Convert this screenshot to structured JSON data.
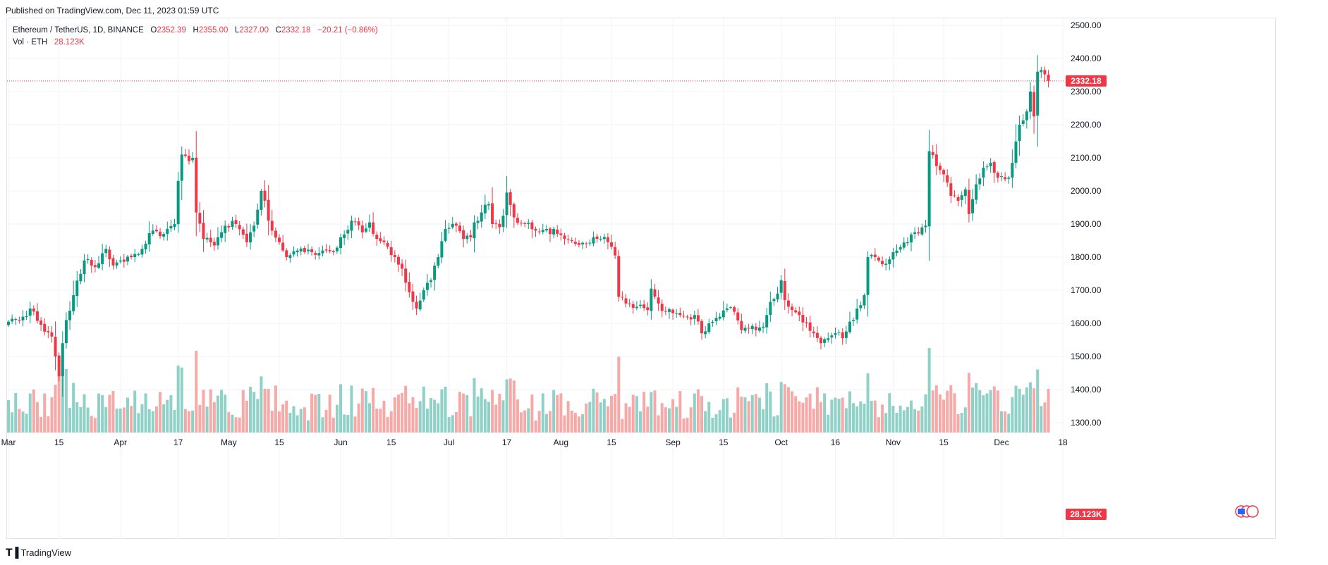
{
  "header": {
    "published": "Published on TradingView.com, Dec 11, 2023 01:59 UTC"
  },
  "legend": {
    "symbol": "Ethereum / TetherUS, 1D, BINANCE",
    "o_label": "O",
    "o_value": "2352.39",
    "h_label": "H",
    "h_value": "2355.00",
    "l_label": "L",
    "l_value": "2327.00",
    "c_label": "C",
    "c_value": "2332.18",
    "change": "−20.21 (−0.86%)",
    "vol_label": "Vol · ETH",
    "vol_value": "28.123K"
  },
  "footer": {
    "brand": "TradingView"
  },
  "colors": {
    "up": "#089981",
    "down": "#f23645",
    "up_vol": "#8fd0c7",
    "down_vol": "#f7a9a7",
    "grid": "#f0f3fa",
    "price_line": "#f23645"
  },
  "chart_data": {
    "type": "candlestick",
    "symbol": "ETHUSDT",
    "interval": "1D",
    "price_axis": {
      "min": 1300,
      "max": 2500,
      "ticks": [
        2500,
        2400,
        2300,
        2200,
        2100,
        2000,
        1900,
        1800,
        1700,
        1600,
        1500,
        1400,
        1300
      ]
    },
    "price_axis_labels": [
      "2500.00",
      "2400.00",
      "2300.00",
      "2200.00",
      "2100.00",
      "2000.00",
      "1900.00",
      "1800.00",
      "1700.00",
      "1600.00",
      "1500.00",
      "1400.00",
      "1300.00"
    ],
    "last_price": 2332.18,
    "last_price_label": "2332.18",
    "last_volume_label": "28.123K",
    "x_tick_labels": [
      {
        "label": "Mar",
        "day": 0
      },
      {
        "label": "15",
        "day": 14
      },
      {
        "label": "Apr",
        "day": 31
      },
      {
        "label": "17",
        "day": 47
      },
      {
        "label": "May",
        "day": 61
      },
      {
        "label": "15",
        "day": 75
      },
      {
        "label": "Jun",
        "day": 92
      },
      {
        "label": "15",
        "day": 106
      },
      {
        "label": "Jul",
        "day": 122
      },
      {
        "label": "17",
        "day": 138
      },
      {
        "label": "Aug",
        "day": 153
      },
      {
        "label": "15",
        "day": 167
      },
      {
        "label": "Sep",
        "day": 184
      },
      {
        "label": "15",
        "day": 198
      },
      {
        "label": "Oct",
        "day": 214
      },
      {
        "label": "16",
        "day": 229
      },
      {
        "label": "Nov",
        "day": 245
      },
      {
        "label": "15",
        "day": 259
      },
      {
        "label": "Dec",
        "day": 275
      },
      {
        "label": "18",
        "day": 292
      }
    ],
    "close_anchors": [
      [
        0,
        1605
      ],
      [
        4,
        1620
      ],
      [
        6,
        1645
      ],
      [
        10,
        1575
      ],
      [
        12,
        1560
      ],
      [
        13,
        1500
      ],
      [
        14,
        1440
      ],
      [
        15,
        1540
      ],
      [
        16,
        1610
      ],
      [
        18,
        1685
      ],
      [
        21,
        1790
      ],
      [
        24,
        1770
      ],
      [
        27,
        1825
      ],
      [
        29,
        1775
      ],
      [
        31,
        1790
      ],
      [
        34,
        1800
      ],
      [
        37,
        1825
      ],
      [
        40,
        1880
      ],
      [
        43,
        1870
      ],
      [
        46,
        1900
      ],
      [
        47,
        2030
      ],
      [
        48,
        2110
      ],
      [
        50,
        2090
      ],
      [
        51,
        2100
      ],
      [
        52,
        1935
      ],
      [
        54,
        1855
      ],
      [
        57,
        1835
      ],
      [
        60,
        1895
      ],
      [
        63,
        1900
      ],
      [
        66,
        1845
      ],
      [
        68,
        1895
      ],
      [
        70,
        2000
      ],
      [
        73,
        1880
      ],
      [
        75,
        1845
      ],
      [
        77,
        1800
      ],
      [
        80,
        1820
      ],
      [
        84,
        1815
      ],
      [
        87,
        1820
      ],
      [
        90,
        1815
      ],
      [
        92,
        1860
      ],
      [
        95,
        1910
      ],
      [
        98,
        1875
      ],
      [
        100,
        1905
      ],
      [
        102,
        1855
      ],
      [
        104,
        1845
      ],
      [
        107,
        1800
      ],
      [
        109,
        1765
      ],
      [
        112,
        1665
      ],
      [
        113,
        1645
      ],
      [
        115,
        1700
      ],
      [
        117,
        1730
      ],
      [
        119,
        1800
      ],
      [
        121,
        1885
      ],
      [
        124,
        1895
      ],
      [
        126,
        1855
      ],
      [
        128,
        1860
      ],
      [
        129,
        1905
      ],
      [
        131,
        1935
      ],
      [
        133,
        1960
      ],
      [
        134,
        1900
      ],
      [
        136,
        1890
      ],
      [
        137,
        1925
      ],
      [
        138,
        1995
      ],
      [
        140,
        1920
      ],
      [
        143,
        1900
      ],
      [
        146,
        1880
      ],
      [
        149,
        1885
      ],
      [
        152,
        1870
      ],
      [
        154,
        1855
      ],
      [
        157,
        1840
      ],
      [
        160,
        1840
      ],
      [
        162,
        1860
      ],
      [
        164,
        1855
      ],
      [
        166,
        1845
      ],
      [
        168,
        1805
      ],
      [
        169,
        1680
      ],
      [
        171,
        1660
      ],
      [
        174,
        1650
      ],
      [
        177,
        1640
      ],
      [
        178,
        1705
      ],
      [
        180,
        1660
      ],
      [
        182,
        1635
      ],
      [
        185,
        1630
      ],
      [
        188,
        1620
      ],
      [
        190,
        1625
      ],
      [
        192,
        1570
      ],
      [
        194,
        1600
      ],
      [
        197,
        1620
      ],
      [
        199,
        1645
      ],
      [
        201,
        1635
      ],
      [
        203,
        1580
      ],
      [
        205,
        1585
      ],
      [
        207,
        1580
      ],
      [
        209,
        1590
      ],
      [
        211,
        1665
      ],
      [
        213,
        1690
      ],
      [
        214,
        1730
      ],
      [
        215,
        1670
      ],
      [
        217,
        1640
      ],
      [
        219,
        1625
      ],
      [
        221,
        1600
      ],
      [
        223,
        1570
      ],
      [
        225,
        1540
      ],
      [
        227,
        1555
      ],
      [
        229,
        1570
      ],
      [
        231,
        1555
      ],
      [
        233,
        1605
      ],
      [
        234,
        1610
      ],
      [
        235,
        1645
      ],
      [
        237,
        1685
      ],
      [
        238,
        1800
      ],
      [
        240,
        1800
      ],
      [
        243,
        1780
      ],
      [
        245,
        1815
      ],
      [
        247,
        1830
      ],
      [
        249,
        1845
      ],
      [
        251,
        1875
      ],
      [
        253,
        1890
      ],
      [
        254,
        1895
      ],
      [
        255,
        2120
      ],
      [
        257,
        2075
      ],
      [
        259,
        2050
      ],
      [
        261,
        1985
      ],
      [
        263,
        1970
      ],
      [
        265,
        2005
      ],
      [
        266,
        1930
      ],
      [
        268,
        2020
      ],
      [
        270,
        2070
      ],
      [
        272,
        2085
      ],
      [
        274,
        2040
      ],
      [
        276,
        2035
      ],
      [
        277,
        2040
      ],
      [
        278,
        2085
      ],
      [
        280,
        2200
      ],
      [
        282,
        2240
      ],
      [
        283,
        2300
      ],
      [
        284,
        2225
      ],
      [
        285,
        2360
      ],
      [
        286,
        2365
      ],
      [
        287,
        2352
      ],
      [
        288,
        2332
      ]
    ],
    "volume_axis_label": "28.123K",
    "note": "Daily ETH/USDT candles from Mar 2023 to Dec 10 2023; closes approximated from price axis."
  }
}
